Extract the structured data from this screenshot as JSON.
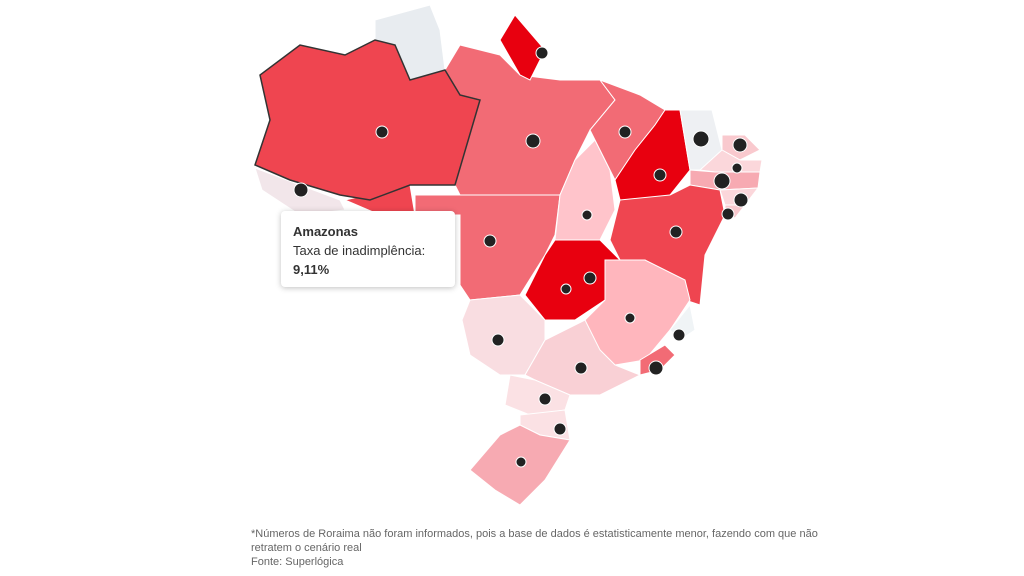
{
  "tooltip": {
    "title": "Amazonas",
    "label": "Taxa de inadimplência:",
    "value": "9,11%"
  },
  "footer": {
    "note": "*Números de Roraima não foram informados, pois a base de dados é estatisticamente menor, fazendo com que não retratem o cenário real",
    "source": "Fonte: Superlógica"
  }
}
